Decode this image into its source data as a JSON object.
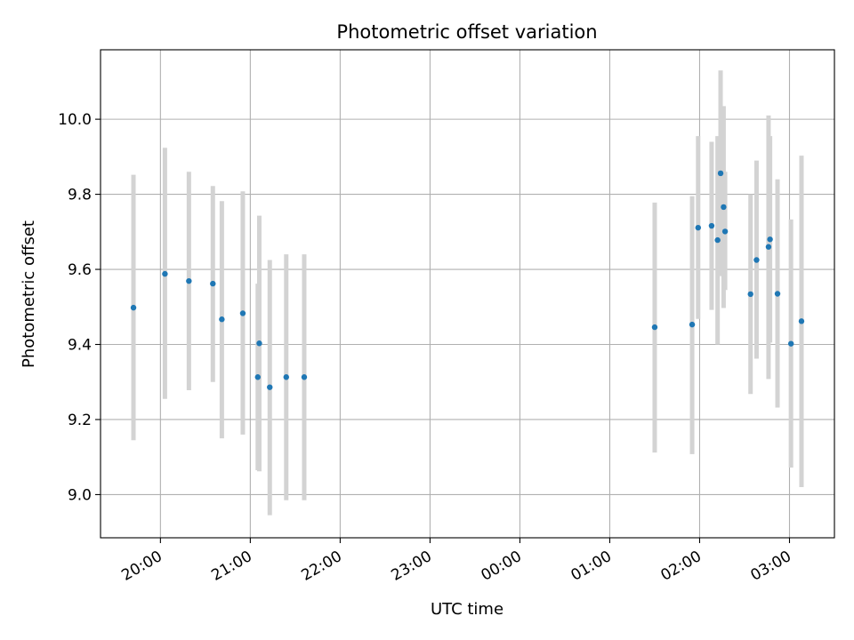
{
  "chart_data": {
    "type": "scatter",
    "title": "Photometric offset variation",
    "xlabel": "UTC time",
    "ylabel": "Photometric offset",
    "x_axis_type": "time",
    "x_start_date": "2000-01-01",
    "xlim": [
      "2000-01-01 19:20",
      "2000-01-02 03:30"
    ],
    "ylim": [
      8.885,
      10.185
    ],
    "grid": true,
    "colors": {
      "point": "#1f77b4",
      "errorbar": "#d3d3d3",
      "grid": "#b0b0b0"
    },
    "x_ticks": [
      "20:00",
      "21:00",
      "22:00",
      "23:00",
      "00:00",
      "01:00",
      "02:00",
      "03:00"
    ],
    "y_ticks": [
      "9.0",
      "9.2",
      "9.4",
      "9.6",
      "9.8",
      "10.0"
    ],
    "points": [
      {
        "x": "2000-01-01 19:42",
        "y": 9.498,
        "ylow": 9.145,
        "yhigh": 9.852
      },
      {
        "x": "2000-01-01 20:03",
        "y": 9.588,
        "ylow": 9.255,
        "yhigh": 9.924
      },
      {
        "x": "2000-01-01 20:19",
        "y": 9.569,
        "ylow": 9.278,
        "yhigh": 9.86
      },
      {
        "x": "2000-01-01 20:35",
        "y": 9.562,
        "ylow": 9.3,
        "yhigh": 9.822
      },
      {
        "x": "2000-01-01 20:41",
        "y": 9.467,
        "ylow": 9.15,
        "yhigh": 9.782
      },
      {
        "x": "2000-01-01 20:55",
        "y": 9.483,
        "ylow": 9.16,
        "yhigh": 9.808
      },
      {
        "x": "2000-01-01 21:05",
        "y": 9.313,
        "ylow": 9.065,
        "yhigh": 9.562
      },
      {
        "x": "2000-01-01 21:06",
        "y": 9.403,
        "ylow": 9.062,
        "yhigh": 9.743
      },
      {
        "x": "2000-01-01 21:13",
        "y": 9.286,
        "ylow": 8.945,
        "yhigh": 9.625
      },
      {
        "x": "2000-01-01 21:24",
        "y": 9.313,
        "ylow": 8.985,
        "yhigh": 9.64
      },
      {
        "x": "2000-01-01 21:36",
        "y": 9.313,
        "ylow": 8.985,
        "yhigh": 9.64
      },
      {
        "x": "2000-01-02 01:30",
        "y": 9.446,
        "ylow": 9.112,
        "yhigh": 9.778
      },
      {
        "x": "2000-01-02 01:55",
        "y": 9.453,
        "ylow": 9.108,
        "yhigh": 9.795
      },
      {
        "x": "2000-01-02 01:59",
        "y": 9.711,
        "ylow": 9.468,
        "yhigh": 9.955
      },
      {
        "x": "2000-01-02 02:08",
        "y": 9.716,
        "ylow": 9.492,
        "yhigh": 9.94
      },
      {
        "x": "2000-01-02 02:12",
        "y": 9.678,
        "ylow": 9.4,
        "yhigh": 9.955
      },
      {
        "x": "2000-01-02 02:14",
        "y": 9.856,
        "ylow": 9.582,
        "yhigh": 10.13
      },
      {
        "x": "2000-01-02 02:16",
        "y": 9.766,
        "ylow": 9.497,
        "yhigh": 10.035
      },
      {
        "x": "2000-01-02 02:17",
        "y": 9.701,
        "ylow": 9.545,
        "yhigh": 9.86
      },
      {
        "x": "2000-01-02 02:34",
        "y": 9.534,
        "ylow": 9.268,
        "yhigh": 9.8
      },
      {
        "x": "2000-01-02 02:38",
        "y": 9.625,
        "ylow": 9.362,
        "yhigh": 9.89
      },
      {
        "x": "2000-01-02 02:46",
        "y": 9.66,
        "ylow": 9.308,
        "yhigh": 10.01
      },
      {
        "x": "2000-01-02 02:47",
        "y": 9.68,
        "ylow": 9.405,
        "yhigh": 9.955
      },
      {
        "x": "2000-01-02 02:52",
        "y": 9.535,
        "ylow": 9.232,
        "yhigh": 9.84
      },
      {
        "x": "2000-01-02 03:01",
        "y": 9.402,
        "ylow": 9.072,
        "yhigh": 9.733
      },
      {
        "x": "2000-01-02 03:08",
        "y": 9.462,
        "ylow": 9.02,
        "yhigh": 9.903
      }
    ]
  }
}
